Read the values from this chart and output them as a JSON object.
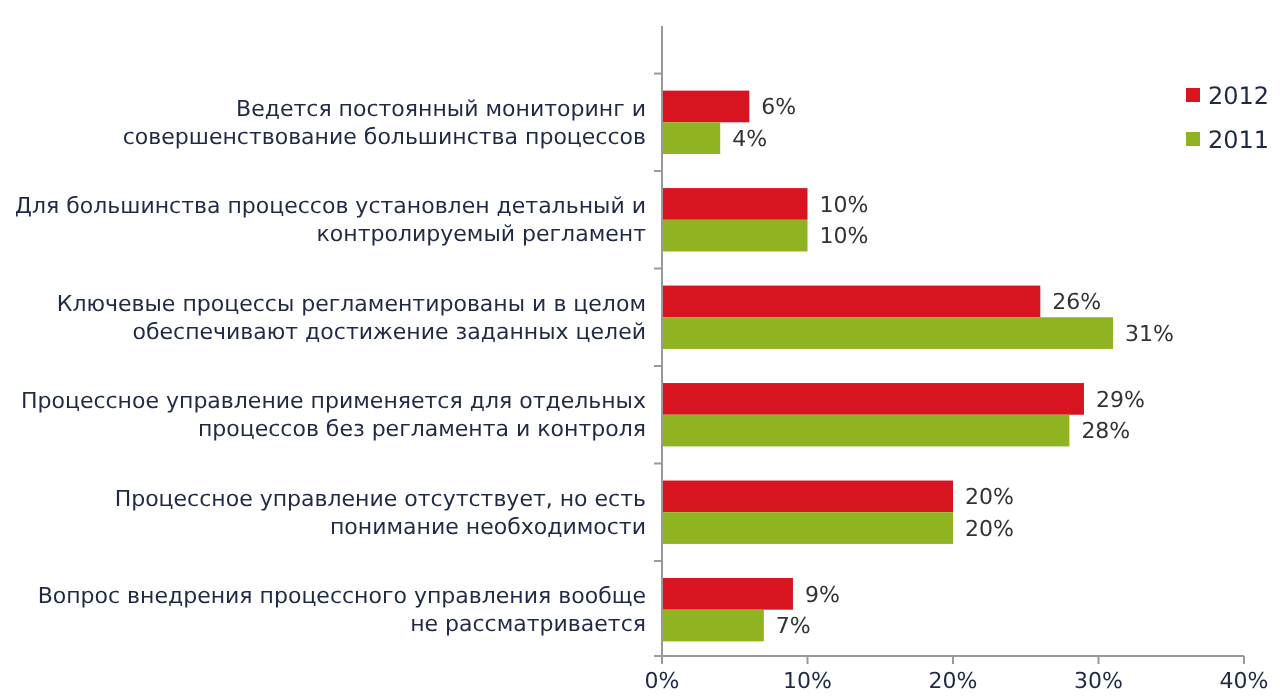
{
  "chart_data": {
    "type": "bar",
    "orientation": "horizontal",
    "categories": [
      "Ведется постоянный мониторинг и совершенствование большинства процессов",
      "Для большинства процессов установлен детальный и контролируемый регламент",
      "Ключевые процессы регламентированы и в целом обеспечивают достижение заданных целей",
      "Процессное управление применяется для отдельных процессов без регламента и контроля",
      "Процессное управление отсутствует, но есть понимание необходимости",
      "Вопрос внедрения процессного управления вообще не рассматривается"
    ],
    "series": [
      {
        "name": "2012",
        "color": "#d7141f",
        "values": [
          6,
          10,
          26,
          29,
          20,
          9
        ],
        "value_labels": [
          "6%",
          "10%",
          "26%",
          "29%",
          "20%",
          "9%"
        ]
      },
      {
        "name": "2011",
        "color": "#8fb321",
        "values": [
          4,
          10,
          31,
          28,
          20,
          7
        ],
        "value_labels": [
          "4%",
          "10%",
          "31%",
          "28%",
          "20%",
          "7%"
        ]
      }
    ],
    "xlim": [
      0,
      40
    ],
    "xticks": [
      {
        "value": 0,
        "label": "0%"
      },
      {
        "value": 10,
        "label": "10%"
      },
      {
        "value": 20,
        "label": "20%"
      },
      {
        "value": 30,
        "label": "30%"
      },
      {
        "value": 40,
        "label": "40%"
      }
    ],
    "grid": false,
    "legend": "top right"
  }
}
